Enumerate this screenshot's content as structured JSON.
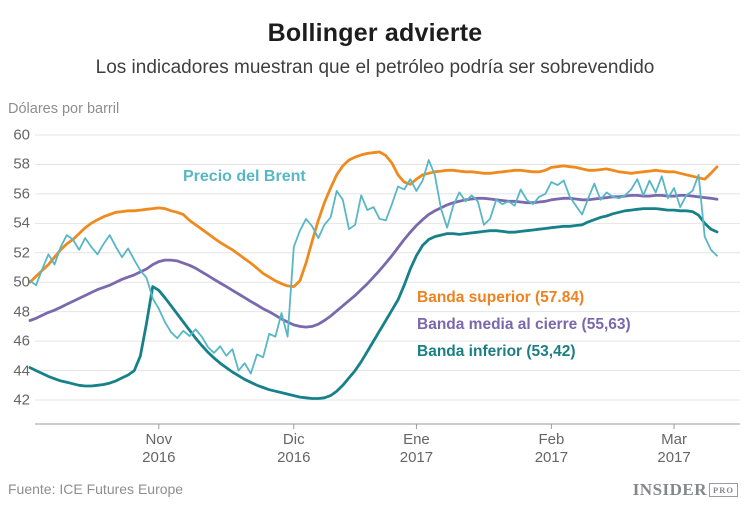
{
  "header": {
    "title": "Bollinger advierte",
    "subtitle": "Los indicadores muestran que el petróleo podría ser sobrevendido",
    "y_axis_title": "Dólares por barril"
  },
  "footer": {
    "source": "Fuente: ICE Futures Europe",
    "logo_text": "INSIDER",
    "logo_badge": "PRO"
  },
  "chart_data": {
    "type": "line",
    "title": "Bollinger advierte",
    "subtitle": "Los indicadores muestran que el petróleo podría ser sobrevendido",
    "ylabel": "Dólares por barril",
    "xlabel": "",
    "ylim": [
      42,
      60
    ],
    "yticks": [
      60,
      58,
      56,
      54,
      52,
      50,
      48,
      46,
      44,
      42
    ],
    "grid": true,
    "legend_position": "inline-annotations",
    "colors": {
      "brent": "#58b7c6",
      "upper_band": "#ef8b1e",
      "middle_band": "#7a6aad",
      "lower_band": "#17818a",
      "gridline": "#e4e4e4",
      "axis": "#9a9a9a",
      "axis_text": "#666666",
      "muted_text": "#8e8e8e"
    },
    "x_axis": {
      "months": [
        {
          "label": "Nov",
          "year": "2016",
          "index": 21
        },
        {
          "label": "Dic",
          "year": "2016",
          "index": 43
        },
        {
          "label": "Ene",
          "year": "2017",
          "index": 63
        },
        {
          "label": "Feb",
          "year": "2017",
          "index": 85
        },
        {
          "label": "Mar",
          "year": "2017",
          "index": 105
        }
      ]
    },
    "series_labels": {
      "brent": "Precio del Brent",
      "upper": "Banda superior (57.84)",
      "middle": "Banda media al cierre (55,63)",
      "lower": "Banda inferior (53,42)"
    },
    "final_values": {
      "upper": "57.84",
      "middle": "55,63",
      "lower": "53,42"
    },
    "series": [
      {
        "id": "upper",
        "name": "Banda superior",
        "color": "#ef8b1e",
        "width": 2.8,
        "values": [
          50.0,
          50.4,
          50.8,
          51.2,
          51.7,
          52.2,
          52.6,
          52.9,
          53.3,
          53.7,
          54.0,
          54.25,
          54.45,
          54.6,
          54.75,
          54.8,
          54.85,
          54.85,
          54.9,
          54.95,
          55.0,
          55.05,
          55.0,
          54.85,
          54.75,
          54.6,
          54.2,
          53.9,
          53.6,
          53.3,
          53.0,
          52.7,
          52.45,
          52.2,
          51.9,
          51.6,
          51.3,
          50.95,
          50.6,
          50.35,
          50.1,
          49.9,
          49.75,
          49.7,
          50.1,
          51.3,
          52.8,
          54.2,
          55.4,
          56.4,
          57.3,
          57.9,
          58.3,
          58.5,
          58.65,
          58.75,
          58.8,
          58.85,
          58.6,
          58.1,
          57.3,
          56.8,
          56.65,
          57.0,
          57.3,
          57.4,
          57.5,
          57.55,
          57.6,
          57.6,
          57.55,
          57.5,
          57.5,
          57.45,
          57.4,
          57.4,
          57.45,
          57.5,
          57.55,
          57.6,
          57.6,
          57.55,
          57.5,
          57.5,
          57.6,
          57.8,
          57.85,
          57.9,
          57.85,
          57.8,
          57.7,
          57.6,
          57.6,
          57.65,
          57.7,
          57.6,
          57.5,
          57.45,
          57.4,
          57.45,
          57.5,
          57.55,
          57.6,
          57.55,
          57.5,
          57.5,
          57.4,
          57.3,
          57.2,
          57.1,
          57.0,
          57.4,
          57.84
        ]
      },
      {
        "id": "middle",
        "name": "Banda media al cierre",
        "color": "#7a6aad",
        "width": 2.8,
        "values": [
          47.4,
          47.55,
          47.75,
          47.95,
          48.1,
          48.3,
          48.5,
          48.7,
          48.9,
          49.1,
          49.3,
          49.5,
          49.65,
          49.8,
          50.0,
          50.2,
          50.35,
          50.5,
          50.7,
          50.9,
          51.2,
          51.4,
          51.5,
          51.5,
          51.45,
          51.3,
          51.15,
          50.95,
          50.7,
          50.45,
          50.2,
          49.95,
          49.7,
          49.45,
          49.2,
          48.95,
          48.7,
          48.45,
          48.2,
          48.0,
          47.75,
          47.5,
          47.3,
          47.1,
          47.0,
          46.95,
          47.0,
          47.15,
          47.4,
          47.7,
          48.05,
          48.4,
          48.75,
          49.1,
          49.5,
          49.9,
          50.35,
          50.8,
          51.3,
          51.8,
          52.35,
          52.9,
          53.4,
          53.85,
          54.25,
          54.6,
          54.85,
          55.05,
          55.25,
          55.4,
          55.5,
          55.6,
          55.65,
          55.7,
          55.7,
          55.65,
          55.6,
          55.55,
          55.5,
          55.5,
          55.45,
          55.4,
          55.4,
          55.45,
          55.5,
          55.6,
          55.65,
          55.7,
          55.7,
          55.65,
          55.6,
          55.6,
          55.65,
          55.7,
          55.75,
          55.8,
          55.8,
          55.85,
          55.9,
          55.9,
          55.85,
          55.85,
          55.9,
          55.9,
          55.85,
          55.85,
          55.9,
          55.9,
          55.85,
          55.8,
          55.75,
          55.7,
          55.63
        ]
      },
      {
        "id": "lower",
        "name": "Banda inferior",
        "color": "#17818a",
        "width": 2.8,
        "values": [
          44.2,
          44.0,
          43.8,
          43.6,
          43.45,
          43.3,
          43.2,
          43.1,
          43.0,
          42.95,
          42.95,
          43.0,
          43.05,
          43.15,
          43.3,
          43.5,
          43.7,
          44.0,
          45.0,
          47.2,
          49.7,
          49.45,
          48.95,
          48.4,
          47.85,
          47.3,
          46.75,
          46.2,
          45.7,
          45.25,
          44.85,
          44.5,
          44.2,
          43.9,
          43.65,
          43.4,
          43.2,
          43.0,
          42.85,
          42.7,
          42.6,
          42.5,
          42.4,
          42.3,
          42.2,
          42.15,
          42.1,
          42.1,
          42.15,
          42.3,
          42.6,
          43.0,
          43.5,
          44.0,
          44.6,
          45.3,
          46.0,
          46.7,
          47.4,
          48.1,
          48.8,
          49.8,
          50.9,
          51.8,
          52.5,
          52.9,
          53.1,
          53.2,
          53.3,
          53.3,
          53.25,
          53.3,
          53.35,
          53.4,
          53.45,
          53.5,
          53.5,
          53.45,
          53.4,
          53.4,
          53.45,
          53.5,
          53.55,
          53.6,
          53.65,
          53.7,
          53.75,
          53.8,
          53.8,
          53.85,
          53.9,
          54.1,
          54.25,
          54.4,
          54.5,
          54.65,
          54.75,
          54.85,
          54.9,
          54.95,
          55.0,
          55.0,
          55.0,
          54.95,
          54.9,
          54.9,
          54.85,
          54.85,
          54.8,
          54.55,
          54.0,
          53.6,
          53.42
        ]
      },
      {
        "id": "brent",
        "name": "Precio del Brent",
        "color": "#58b7c6",
        "width": 1.8,
        "values": [
          50.1,
          49.8,
          50.9,
          51.9,
          51.2,
          52.4,
          53.2,
          52.9,
          52.2,
          53.0,
          52.4,
          51.9,
          52.6,
          53.2,
          52.4,
          51.7,
          52.3,
          51.5,
          50.8,
          50.3,
          48.9,
          48.2,
          47.3,
          46.6,
          46.2,
          46.7,
          46.35,
          46.8,
          46.3,
          45.6,
          45.2,
          45.65,
          45.0,
          45.45,
          44.0,
          44.5,
          43.8,
          45.1,
          44.9,
          46.5,
          46.3,
          47.9,
          46.3,
          52.4,
          53.5,
          54.3,
          53.8,
          53.0,
          53.9,
          54.4,
          56.2,
          55.6,
          53.6,
          53.9,
          55.9,
          54.9,
          55.1,
          54.3,
          54.2,
          55.3,
          56.5,
          56.3,
          57.0,
          56.2,
          56.9,
          58.3,
          57.3,
          55.0,
          53.7,
          55.2,
          56.1,
          55.5,
          55.9,
          55.5,
          53.9,
          54.3,
          55.6,
          55.3,
          55.5,
          55.2,
          56.3,
          55.6,
          55.3,
          55.8,
          56.0,
          56.8,
          56.6,
          56.9,
          55.8,
          55.2,
          54.6,
          55.7,
          56.7,
          55.6,
          56.1,
          55.8,
          55.7,
          55.9,
          56.3,
          57.0,
          55.9,
          56.9,
          56.1,
          57.2,
          55.7,
          56.4,
          55.1,
          55.9,
          56.2,
          57.3,
          53.1,
          52.2,
          51.8
        ]
      }
    ]
  }
}
